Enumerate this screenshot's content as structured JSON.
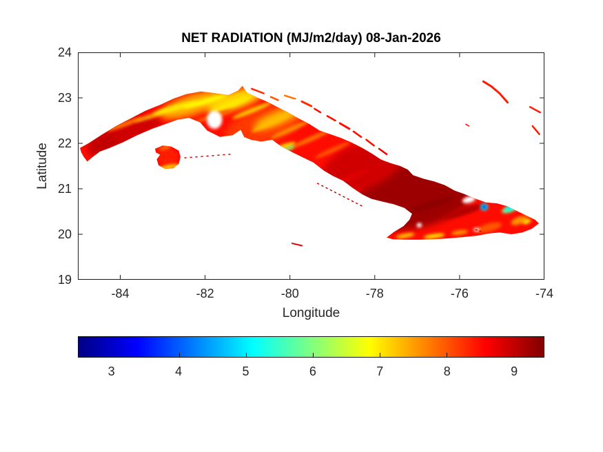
{
  "frame": {
    "background": "#ffffff",
    "box_color": "#1a1a1a",
    "axis_text_color": "#262626",
    "title_color": "#000000"
  },
  "chart_data": {
    "type": "heatmap",
    "subtype": "geographic-raster-map",
    "region": "Cuba",
    "title": "NET RADIATION (MJ/m2/day) 08-Jan-2026",
    "xlabel": "Longitude",
    "ylabel": "Latitude",
    "units": "MJ/m2/day",
    "date": "08-Jan-2026",
    "xlim": [
      -85,
      -74
    ],
    "ylim": [
      19,
      24
    ],
    "x_ticks": [
      -84,
      -82,
      -80,
      -78,
      -76,
      -74
    ],
    "y_ticks": [
      24,
      23,
      22,
      21,
      20,
      19
    ],
    "grid": false,
    "colorbar": {
      "orientation": "horizontal",
      "position": "below-axes",
      "range": [
        2.5,
        9.45
      ],
      "ticks": [
        3,
        4,
        5,
        6,
        7,
        8,
        9
      ],
      "colormap": "jet",
      "stops": [
        {
          "t": 0.0,
          "color": "#000083"
        },
        {
          "t": 0.125,
          "color": "#0000ff"
        },
        {
          "t": 0.375,
          "color": "#00ffff"
        },
        {
          "t": 0.625,
          "color": "#ffff00"
        },
        {
          "t": 0.875,
          "color": "#ff0000"
        },
        {
          "t": 1.0,
          "color": "#800000"
        }
      ]
    },
    "land_base_value": 8.5,
    "land": {
      "mainland": [
        [
          -84.95,
          21.9
        ],
        [
          -84.75,
          22.0
        ],
        [
          -84.45,
          22.18
        ],
        [
          -84.1,
          22.38
        ],
        [
          -83.75,
          22.55
        ],
        [
          -83.4,
          22.72
        ],
        [
          -83.05,
          22.85
        ],
        [
          -82.75,
          22.98
        ],
        [
          -82.45,
          23.08
        ],
        [
          -82.1,
          23.14
        ],
        [
          -81.75,
          23.1
        ],
        [
          -81.45,
          23.06
        ],
        [
          -81.22,
          23.16
        ],
        [
          -81.12,
          23.26
        ],
        [
          -81.02,
          23.12
        ],
        [
          -80.8,
          23.02
        ],
        [
          -80.55,
          22.92
        ],
        [
          -80.3,
          22.8
        ],
        [
          -80.05,
          22.68
        ],
        [
          -79.8,
          22.55
        ],
        [
          -79.55,
          22.43
        ],
        [
          -79.3,
          22.28
        ],
        [
          -79.05,
          22.2
        ],
        [
          -78.8,
          22.12
        ],
        [
          -78.55,
          22.02
        ],
        [
          -78.3,
          21.9
        ],
        [
          -78.08,
          21.78
        ],
        [
          -77.85,
          21.64
        ],
        [
          -77.62,
          21.56
        ],
        [
          -77.4,
          21.5
        ],
        [
          -77.22,
          21.42
        ],
        [
          -77.1,
          21.3
        ],
        [
          -76.85,
          21.22
        ],
        [
          -76.6,
          21.16
        ],
        [
          -76.35,
          21.08
        ],
        [
          -76.12,
          20.96
        ],
        [
          -75.88,
          20.88
        ],
        [
          -75.62,
          20.78
        ],
        [
          -75.38,
          20.7
        ],
        [
          -75.12,
          20.68
        ],
        [
          -74.88,
          20.62
        ],
        [
          -74.62,
          20.5
        ],
        [
          -74.4,
          20.4
        ],
        [
          -74.22,
          20.32
        ],
        [
          -74.13,
          20.24
        ],
        [
          -74.3,
          20.12
        ],
        [
          -74.52,
          20.04
        ],
        [
          -74.78,
          20.0
        ],
        [
          -75.05,
          20.04
        ],
        [
          -75.3,
          20.02
        ],
        [
          -75.58,
          19.97
        ],
        [
          -75.9,
          19.94
        ],
        [
          -76.25,
          19.91
        ],
        [
          -76.6,
          19.89
        ],
        [
          -76.95,
          19.88
        ],
        [
          -77.3,
          19.88
        ],
        [
          -77.58,
          19.89
        ],
        [
          -77.72,
          19.93
        ],
        [
          -77.55,
          20.05
        ],
        [
          -77.32,
          20.18
        ],
        [
          -77.18,
          20.32
        ],
        [
          -77.12,
          20.45
        ],
        [
          -77.3,
          20.58
        ],
        [
          -77.55,
          20.66
        ],
        [
          -77.82,
          20.72
        ],
        [
          -78.08,
          20.78
        ],
        [
          -78.3,
          20.88
        ],
        [
          -78.52,
          21.02
        ],
        [
          -78.75,
          21.18
        ],
        [
          -78.98,
          21.28
        ],
        [
          -79.2,
          21.4
        ],
        [
          -79.45,
          21.58
        ],
        [
          -79.72,
          21.7
        ],
        [
          -79.98,
          21.82
        ],
        [
          -80.22,
          21.94
        ],
        [
          -80.42,
          22.08
        ],
        [
          -80.68,
          22.04
        ],
        [
          -80.92,
          22.08
        ],
        [
          -81.08,
          22.14
        ],
        [
          -81.16,
          22.3
        ],
        [
          -81.35,
          22.18
        ],
        [
          -81.65,
          22.14
        ],
        [
          -81.95,
          22.28
        ],
        [
          -82.12,
          22.46
        ],
        [
          -82.38,
          22.56
        ],
        [
          -82.65,
          22.52
        ],
        [
          -82.95,
          22.42
        ],
        [
          -83.25,
          22.32
        ],
        [
          -83.6,
          22.18
        ],
        [
          -83.95,
          22.02
        ],
        [
          -84.25,
          21.9
        ],
        [
          -84.48,
          21.82
        ],
        [
          -84.65,
          21.7
        ],
        [
          -84.78,
          21.6
        ],
        [
          -84.86,
          21.7
        ],
        [
          -84.92,
          21.8
        ]
      ],
      "isla_de_la_juventud": [
        [
          -83.18,
          21.88
        ],
        [
          -83.0,
          21.95
        ],
        [
          -82.8,
          21.93
        ],
        [
          -82.62,
          21.84
        ],
        [
          -82.58,
          21.7
        ],
        [
          -82.62,
          21.55
        ],
        [
          -82.75,
          21.45
        ],
        [
          -82.95,
          21.44
        ],
        [
          -83.1,
          21.52
        ],
        [
          -83.14,
          21.65
        ],
        [
          -83.06,
          21.75
        ],
        [
          -83.16,
          21.8
        ]
      ]
    },
    "patch_format": [
      "lon",
      "lat",
      "rx_deg",
      "ry_deg",
      "angle_deg",
      "value_MJ_m2_day",
      "blur_level"
    ],
    "patches": [
      [
        -84.3,
        22.0,
        0.5,
        0.28,
        -20,
        9.0,
        2
      ],
      [
        -83.6,
        22.3,
        0.6,
        0.3,
        -20,
        8.9,
        2
      ],
      [
        -77.0,
        20.9,
        1.5,
        0.75,
        -15,
        9.25,
        2
      ],
      [
        -78.3,
        21.5,
        1.0,
        0.5,
        -20,
        8.9,
        2
      ],
      [
        -80.6,
        22.4,
        1.0,
        0.4,
        -20,
        8.2,
        2
      ],
      [
        -82.3,
        22.85,
        0.8,
        0.22,
        -18,
        7.4,
        2
      ],
      [
        -81.3,
        22.95,
        0.7,
        0.2,
        -18,
        7.1,
        2
      ],
      [
        -80.3,
        22.55,
        0.6,
        0.15,
        -22,
        7.3,
        2
      ],
      [
        -83.9,
        22.42,
        0.45,
        0.05,
        -20,
        7.8,
        1
      ],
      [
        -83.2,
        22.62,
        0.5,
        0.05,
        -18,
        7.5,
        1
      ],
      [
        -82.7,
        22.78,
        0.55,
        0.06,
        -16,
        7.0,
        1
      ],
      [
        -82.0,
        22.92,
        0.55,
        0.06,
        -16,
        6.9,
        1
      ],
      [
        -81.4,
        22.85,
        0.5,
        0.06,
        -20,
        7.0,
        1
      ],
      [
        -80.9,
        22.72,
        0.5,
        0.05,
        -22,
        7.2,
        1
      ],
      [
        -80.45,
        22.45,
        0.5,
        0.05,
        -24,
        7.3,
        1
      ],
      [
        -80.0,
        22.3,
        0.5,
        0.05,
        -24,
        7.6,
        1
      ],
      [
        -79.5,
        22.1,
        0.5,
        0.05,
        -24,
        7.8,
        1
      ],
      [
        -79.0,
        21.85,
        0.45,
        0.05,
        -24,
        8.0,
        1
      ],
      [
        -83.0,
        22.35,
        0.4,
        0.05,
        -18,
        8.6,
        1
      ],
      [
        -81.8,
        22.6,
        0.45,
        0.05,
        -18,
        7.9,
        1
      ],
      [
        -76.7,
        20.65,
        0.6,
        0.08,
        -18,
        9.35,
        1
      ],
      [
        -75.9,
        20.5,
        0.5,
        0.08,
        -18,
        9.1,
        1
      ],
      [
        -77.5,
        20.4,
        0.45,
        0.07,
        -18,
        9.3,
        1
      ],
      [
        -78.6,
        21.25,
        0.5,
        0.06,
        -22,
        8.8,
        1
      ],
      [
        -77.28,
        19.97,
        0.22,
        0.05,
        -10,
        7.3,
        1
      ],
      [
        -76.6,
        19.96,
        0.25,
        0.05,
        -8,
        7.1,
        1
      ],
      [
        -76.0,
        20.04,
        0.2,
        0.05,
        -8,
        7.6,
        1
      ],
      [
        -75.3,
        20.15,
        0.3,
        0.09,
        -15,
        8.0,
        1
      ],
      [
        -74.6,
        20.3,
        0.2,
        0.08,
        -20,
        7.6,
        1
      ],
      [
        -74.42,
        20.28,
        0.1,
        0.05,
        -20,
        7.0,
        1
      ],
      [
        -74.35,
        20.46,
        0.12,
        0.05,
        -25,
        7.8,
        1
      ],
      [
        -74.8,
        20.56,
        0.22,
        0.07,
        -20,
        5.8,
        1
      ],
      [
        -74.83,
        20.57,
        0.1,
        0.04,
        -20,
        5.0,
        1
      ],
      [
        -75.42,
        20.6,
        0.09,
        0.075,
        0,
        5.0,
        1
      ],
      [
        -75.42,
        20.6,
        0.045,
        0.035,
        0,
        3.2,
        1
      ],
      [
        -80.15,
        21.92,
        0.3,
        0.06,
        -20,
        7.2,
        1
      ],
      [
        -80.02,
        21.89,
        0.14,
        0.04,
        -20,
        6.0,
        1
      ],
      [
        -82.88,
        21.7,
        0.22,
        0.18,
        0,
        8.4,
        1
      ],
      [
        -82.85,
        21.48,
        0.25,
        0.05,
        -10,
        7.2,
        1
      ],
      [
        -82.95,
        21.9,
        0.15,
        0.04,
        -15,
        7.8,
        1
      ]
    ],
    "no_data_gap_format": [
      "lon",
      "lat",
      "rx_deg",
      "ry_deg",
      "angle_deg"
    ],
    "no_data_gaps": [
      [
        -81.78,
        22.52,
        0.18,
        0.2,
        0
      ],
      [
        -75.78,
        20.76,
        0.16,
        0.07,
        -15
      ],
      [
        -76.95,
        20.2,
        0.06,
        0.05,
        0
      ],
      [
        -75.6,
        20.1,
        0.07,
        0.04,
        0
      ]
    ],
    "cays": [
      {
        "pts": [
          [
            -80.9,
            23.2
          ],
          [
            -80.62,
            23.1
          ]
        ],
        "w": 2.5,
        "value": 8.3
      },
      {
        "pts": [
          [
            -80.45,
            23.02
          ],
          [
            -80.28,
            22.95
          ]
        ],
        "w": 2.5,
        "value": 8.0
      },
      {
        "pts": [
          [
            -80.12,
            23.05
          ],
          [
            -79.88,
            22.98
          ]
        ],
        "w": 2.5,
        "value": 7.8
      },
      {
        "pts": [
          [
            -79.72,
            22.92
          ],
          [
            -79.5,
            22.82
          ]
        ],
        "w": 3,
        "value": 8.3
      },
      {
        "pts": [
          [
            -79.42,
            22.76
          ],
          [
            -79.28,
            22.68
          ]
        ],
        "w": 2.5,
        "value": 8.5
      },
      {
        "pts": [
          [
            -79.12,
            22.6
          ],
          [
            -78.93,
            22.5
          ]
        ],
        "w": 2.5,
        "value": 8.5
      },
      {
        "pts": [
          [
            -78.82,
            22.44
          ],
          [
            -78.6,
            22.32
          ]
        ],
        "w": 3,
        "value": 8.5
      },
      {
        "pts": [
          [
            -78.5,
            22.26
          ],
          [
            -78.32,
            22.14
          ]
        ],
        "w": 2.5,
        "value": 8.5
      },
      {
        "pts": [
          [
            -78.2,
            22.08
          ],
          [
            -78.02,
            21.95
          ]
        ],
        "w": 2.5,
        "value": 8.5
      },
      {
        "pts": [
          [
            -77.9,
            21.88
          ],
          [
            -77.72,
            21.76
          ]
        ],
        "w": 2.5,
        "value": 8.6
      },
      {
        "pts": [
          [
            -79.35,
            21.12
          ],
          [
            -78.3,
            20.62
          ]
        ],
        "w": 1.5,
        "value": 9.0,
        "dash": "2 5"
      },
      {
        "pts": [
          [
            -82.48,
            21.68
          ],
          [
            -81.4,
            21.76
          ]
        ],
        "w": 1.5,
        "value": 8.8,
        "dash": "2 6"
      },
      {
        "pts": [
          [
            -79.95,
            19.8
          ],
          [
            -79.72,
            19.75
          ]
        ],
        "w": 2,
        "value": 8.8
      },
      {
        "pts": [
          [
            -75.44,
            23.36
          ],
          [
            -75.25,
            23.25
          ],
          [
            -75.06,
            23.1
          ],
          [
            -74.87,
            22.9
          ]
        ],
        "w": 3,
        "value": 8.4
      },
      {
        "pts": [
          [
            -74.34,
            22.8
          ],
          [
            -74.1,
            22.68
          ]
        ],
        "w": 2.5,
        "value": 8.4
      },
      {
        "pts": [
          [
            -74.28,
            22.38
          ],
          [
            -74.12,
            22.2
          ]
        ],
        "w": 2.5,
        "value": 8.4
      },
      {
        "pts": [
          [
            -75.85,
            22.42
          ],
          [
            -75.78,
            22.38
          ]
        ],
        "w": 1.5,
        "value": 8.6
      },
      {
        "pts": [
          [
            -75.62,
            20.1
          ],
          [
            -75.48,
            20.06
          ]
        ],
        "w": 1.5,
        "value": 9.0,
        "dash": "2 4"
      }
    ]
  }
}
